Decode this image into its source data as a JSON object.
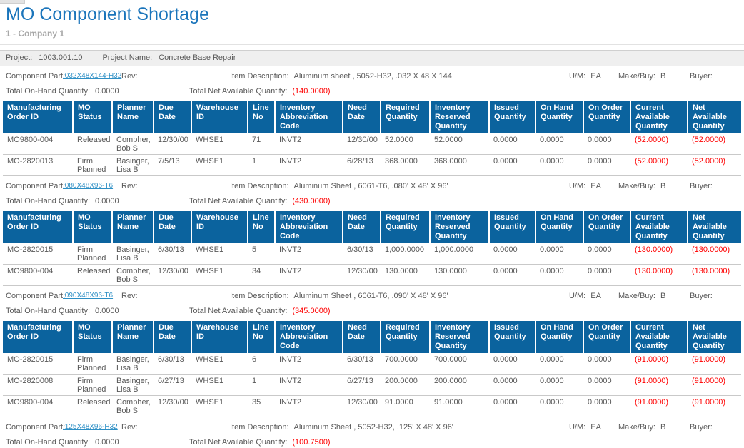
{
  "page": {
    "title": "MO Component Shortage",
    "company": "1 - Company 1"
  },
  "project": {
    "label": "Project:",
    "value": "1003.001.10",
    "name_label": "Project Name:",
    "name_value": "Concrete Base Repair"
  },
  "labels": {
    "component_part": "Component Part:",
    "rev": "Rev:",
    "item_description": "Item Description:",
    "um": "U/M:",
    "make_buy": "Make/Buy:",
    "buyer": "Buyer:",
    "total_on_hand": "Total On-Hand Quantity:",
    "total_net_available": "Total Net Available Quantity:"
  },
  "table": {
    "headers": [
      "Manufacturing Order ID",
      "MO Status",
      "Planner Name",
      "Due Date",
      "Warehouse ID",
      "Line No",
      "Inventory Abbreviation Code",
      "Need Date",
      "Required Quantity",
      "Inventory Reserved Quantity",
      "Issued Quantity",
      "On Hand Quantity",
      "On Order Quantity",
      "Current Available Quantity",
      "Net Available Quantity"
    ]
  },
  "sections": [
    {
      "component_part": ".032X48X144-H32",
      "rev": "",
      "item_description": "Aluminum sheet , 5052-H32, .032 X 48 X 144",
      "um": "EA",
      "make_buy": "B",
      "buyer": "",
      "total_on_hand": "0.0000",
      "total_net_available": "(140.0000)",
      "rows": [
        [
          "MO9800-004",
          "Released",
          "Compher, Bob S",
          "12/30/00",
          "WHSE1",
          "71",
          "INVT2",
          "12/30/00",
          "52.0000",
          "52.0000",
          "0.0000",
          "0.0000",
          "0.0000",
          "(52.0000)",
          "(52.0000)"
        ],
        [
          "MO-2820013",
          "Firm Planned",
          "Basinger, Lisa B",
          "7/5/13",
          "WHSE1",
          "1",
          "INVT2",
          "6/28/13",
          "368.0000",
          "368.0000",
          "0.0000",
          "0.0000",
          "0.0000",
          "(52.0000)",
          "(52.0000)"
        ]
      ]
    },
    {
      "component_part": ".080X48X96-T6",
      "rev": "",
      "item_description": "Aluminum Sheet , 6061-T6, .080' X 48' X 96'",
      "um": "EA",
      "make_buy": "B",
      "buyer": "",
      "total_on_hand": "0.0000",
      "total_net_available": "(430.0000)",
      "rows": [
        [
          "MO-2820015",
          "Firm Planned",
          "Basinger, Lisa B",
          "6/30/13",
          "WHSE1",
          "5",
          "INVT2",
          "6/30/13",
          "1,000.0000",
          "1,000.0000",
          "0.0000",
          "0.0000",
          "0.0000",
          "(130.0000)",
          "(130.0000)"
        ],
        [
          "MO9800-004",
          "Released",
          "Compher, Bob S",
          "12/30/00",
          "WHSE1",
          "34",
          "INVT2",
          "12/30/00",
          "130.0000",
          "130.0000",
          "0.0000",
          "0.0000",
          "0.0000",
          "(130.0000)",
          "(130.0000)"
        ]
      ]
    },
    {
      "component_part": ".090X48X96-T6",
      "rev": "",
      "item_description": "Aluminum Sheet , 6061-T6, .090' X 48' X 96'",
      "um": "EA",
      "make_buy": "B",
      "buyer": "",
      "total_on_hand": "0.0000",
      "total_net_available": "(345.0000)",
      "rows": [
        [
          "MO-2820015",
          "Firm Planned",
          "Basinger, Lisa B",
          "6/30/13",
          "WHSE1",
          "6",
          "INVT2",
          "6/30/13",
          "700.0000",
          "700.0000",
          "0.0000",
          "0.0000",
          "0.0000",
          "(91.0000)",
          "(91.0000)"
        ],
        [
          "MO-2820008",
          "Firm Planned",
          "Basinger, Lisa B",
          "6/27/13",
          "WHSE1",
          "1",
          "INVT2",
          "6/27/13",
          "200.0000",
          "200.0000",
          "0.0000",
          "0.0000",
          "0.0000",
          "(91.0000)",
          "(91.0000)"
        ],
        [
          "MO9800-004",
          "Released",
          "Compher, Bob S",
          "12/30/00",
          "WHSE1",
          "35",
          "INVT2",
          "12/30/00",
          "91.0000",
          "91.0000",
          "0.0000",
          "0.0000",
          "0.0000",
          "(91.0000)",
          "(91.0000)"
        ]
      ]
    },
    {
      "component_part": ".125X48X96-H32",
      "rev": "",
      "item_description": "Aluminum Sheet , 5052-H32, .125' X 48' X 96'",
      "um": "EA",
      "make_buy": "B",
      "buyer": "",
      "total_on_hand": "0.0000",
      "total_net_available": "(100.7500)",
      "rows": []
    }
  ]
}
